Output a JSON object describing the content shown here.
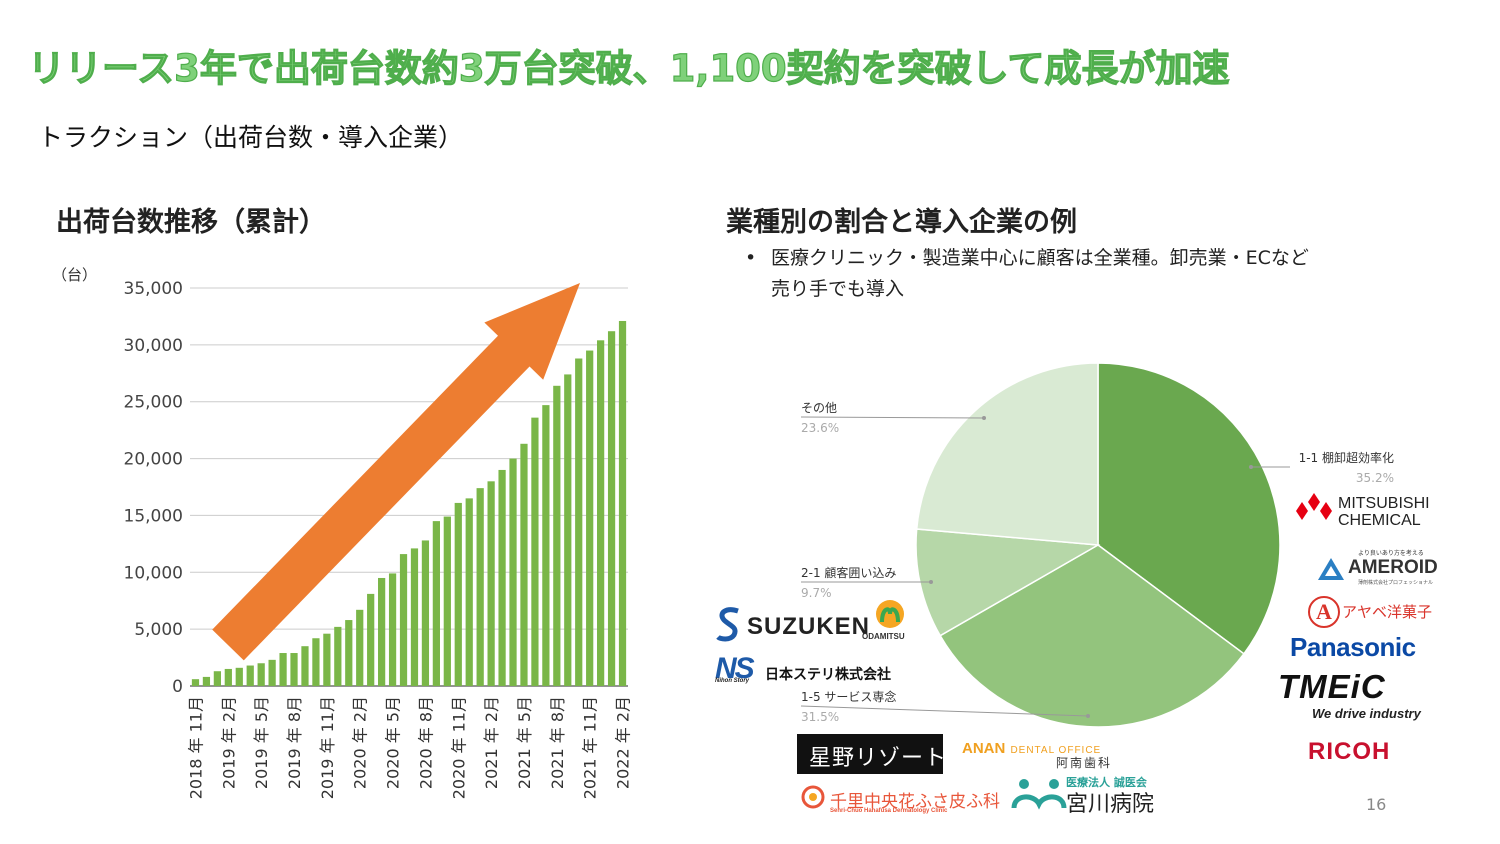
{
  "title": "リリース3年で出荷台数約3万台突破、1,100契約を突破して成長が加速",
  "subtitle": "トラクション（出荷台数・導入企業）",
  "left_section_title": "出荷台数推移（累計）",
  "right_section_title": "業種別の割合と導入企業の例",
  "bullet": "医療クリニック・製造業中心に顧客は全業種。卸売業・ECなど売り手でも導入",
  "page_number": "16",
  "colors": {
    "title_green": "#7fd17a",
    "bar_green": "#7ab648",
    "arrow_orange": "#ed7d31"
  },
  "chart_data": [
    {
      "type": "bar",
      "unit_label": "（台）",
      "ylim": [
        0,
        35000
      ],
      "yticks": [
        "0",
        "5,000",
        "10,000",
        "15,000",
        "20,000",
        "25,000",
        "30,000",
        "35,000"
      ],
      "grid": true,
      "categories": [
        "2018年11月",
        "2018年12月",
        "2019年1月",
        "2019年2月",
        "2019年3月",
        "2019年4月",
        "2019年5月",
        "2019年6月",
        "2019年7月",
        "2019年8月",
        "2019年9月",
        "2019年10月",
        "2019年11月",
        "2019年12月",
        "2020年1月",
        "2020年2月",
        "2020年3月",
        "2020年4月",
        "2020年5月",
        "2020年6月",
        "2020年7月",
        "2020年8月",
        "2020年9月",
        "2020年10月",
        "2020年11月",
        "2020年12月",
        "2021年1月",
        "2021年2月",
        "2021年3月",
        "2021年4月",
        "2021年5月",
        "2021年6月",
        "2021年7月",
        "2021年8月",
        "2021年9月",
        "2021年10月",
        "2021年11月",
        "2021年12月",
        "2022年1月",
        "2022年2月"
      ],
      "xtick_labels": [
        "2018 年 11月",
        "2019 年 2月",
        "2019 年 5月",
        "2019 年 8月",
        "2019 年 11月",
        "2020 年 2月",
        "2020 年 5月",
        "2020 年 8月",
        "2020 年 11月",
        "2021 年 2月",
        "2021 年 5月",
        "2021 年 8月",
        "2021 年 11月",
        "2022 年 2月"
      ],
      "values": [
        600,
        800,
        1300,
        1500,
        1600,
        1800,
        2000,
        2300,
        2900,
        2900,
        3500,
        4200,
        4600,
        5200,
        5800,
        6700,
        8100,
        9500,
        9900,
        11600,
        12100,
        12800,
        14500,
        14900,
        16100,
        16500,
        17400,
        18000,
        19000,
        20000,
        21300,
        23600,
        24700,
        26400,
        27400,
        28800,
        29500,
        30400,
        31200,
        32100
      ],
      "annotation": "orange upward trend arrow"
    },
    {
      "type": "pie",
      "slices": [
        {
          "name": "1-1 棚卸超効率化",
          "value": 35.2,
          "label": "35.2%",
          "color": "#6aa84f"
        },
        {
          "name": "1-5 サービス専念",
          "value": 31.5,
          "label": "31.5%",
          "color": "#93c47d"
        },
        {
          "name": "2-1 顧客囲い込み",
          "value": 9.7,
          "label": "9.7%",
          "color": "#b6d7a8"
        },
        {
          "name": "その他",
          "value": 23.6,
          "label": "23.6%",
          "color": "#d9ead3"
        }
      ]
    }
  ],
  "logos": {
    "mitsubishi_l1": "MITSUBISHI",
    "mitsubishi_l2": "CHEMICAL",
    "ameroid_top": "より良いあり方を考える",
    "ameroid": "AMEROID",
    "ameroid_sub": "薄剤株式会社プロフェッショナル",
    "a_logo": "A",
    "abe": "アヤベ洋菓子",
    "panasonic": "Panasonic",
    "tmeic": "TMEiC",
    "tmeic_sub": "We drive industry",
    "ricoh": "RICOH",
    "suzuken": "SUZUKEN",
    "odamitsu": "ODAMITSU",
    "ns": "NS",
    "nihon_story": "Nihon Story",
    "nihon_steri": "日本ステリ株式会社",
    "hoshino": "星野リゾート",
    "anan_main": "ANAN",
    "anan_dental": "DENTAL OFFICE",
    "anan_jp": "阿南歯科",
    "senri": "千里中央花ふさ皮ふ科",
    "senri_sub": "Senri-Chuo Hanafusa Dermatology Clinic",
    "miyagawa_top": "医療法人 誠医会",
    "miyagawa": "宮川病院"
  }
}
